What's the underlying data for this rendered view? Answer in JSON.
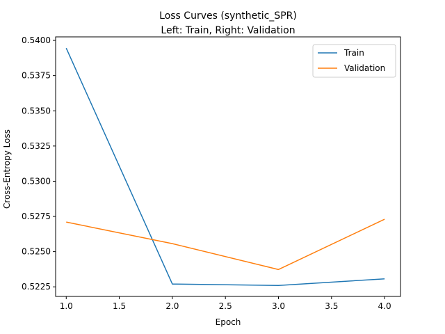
{
  "chart_data": {
    "type": "line",
    "title_line1": "Loss Curves (synthetic_SPR)",
    "title_line2": "Left: Train, Right: Validation",
    "xlabel": "Epoch",
    "ylabel": "Cross-Entropy Loss",
    "x": [
      1.0,
      2.0,
      3.0,
      4.0
    ],
    "xlim": [
      0.9,
      4.15
    ],
    "ylim": [
      0.52182,
      0.54025
    ],
    "xticks": [
      1.0,
      1.5,
      2.0,
      2.5,
      3.0,
      3.5,
      4.0
    ],
    "xtick_labels": [
      "1.0",
      "1.5",
      "2.0",
      "2.5",
      "3.0",
      "3.5",
      "4.0"
    ],
    "yticks": [
      0.5225,
      0.525,
      0.5275,
      0.53,
      0.5325,
      0.535,
      0.5375,
      0.54
    ],
    "ytick_labels": [
      "0.5225",
      "0.5250",
      "0.5275",
      "0.5300",
      "0.5325",
      "0.5350",
      "0.5375",
      "0.5400"
    ],
    "grid": false,
    "legend_position": "top-right",
    "series": [
      {
        "name": "Train",
        "color": "#1f77b4",
        "values": [
          0.53945,
          0.5227,
          0.5226,
          0.52307
        ]
      },
      {
        "name": "Validation",
        "color": "#ff7f0e",
        "values": [
          0.5271,
          0.52557,
          0.52373,
          0.5273
        ]
      }
    ]
  }
}
